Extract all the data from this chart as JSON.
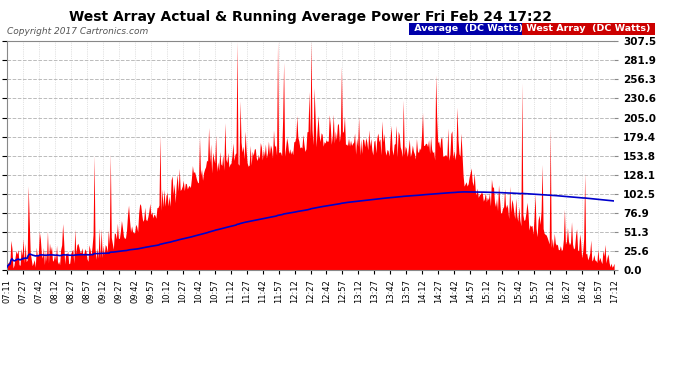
{
  "title": "West Array Actual & Running Average Power Fri Feb 24 17:22",
  "copyright": "Copyright 2017 Cartronics.com",
  "ymax": 307.5,
  "ymin": 0.0,
  "yticks": [
    0.0,
    25.6,
    51.3,
    76.9,
    102.5,
    128.1,
    153.8,
    179.4,
    205.0,
    230.6,
    256.3,
    281.9,
    307.5
  ],
  "ytick_labels": [
    "0.0",
    "25.6",
    "51.3",
    "76.9",
    "102.5",
    "128.1",
    "153.8",
    "179.4",
    "205.0",
    "230.6",
    "256.3",
    "281.9",
    "307.5"
  ],
  "bg_color": "#ffffff",
  "plot_bg_color": "#ffffff",
  "title_color": "#000000",
  "grid_color": "#bbbbbb",
  "red_fill_color": "#ff0000",
  "blue_line_color": "#0000cc",
  "legend_avg_bg": "#0000aa",
  "legend_west_bg": "#cc0000",
  "legend_avg_label": "Average  (DC Watts)",
  "legend_west_label": "West Array  (DC Watts)",
  "xtick_labels": [
    "07:11",
    "07:27",
    "07:42",
    "08:12",
    "08:27",
    "08:57",
    "09:12",
    "09:27",
    "09:42",
    "09:57",
    "10:12",
    "10:27",
    "10:42",
    "10:57",
    "11:12",
    "11:27",
    "11:42",
    "11:57",
    "12:12",
    "12:27",
    "12:42",
    "12:57",
    "13:12",
    "13:27",
    "13:42",
    "13:57",
    "14:12",
    "14:27",
    "14:42",
    "14:57",
    "15:12",
    "15:27",
    "15:42",
    "15:57",
    "16:12",
    "16:27",
    "16:42",
    "16:57",
    "17:12"
  ]
}
